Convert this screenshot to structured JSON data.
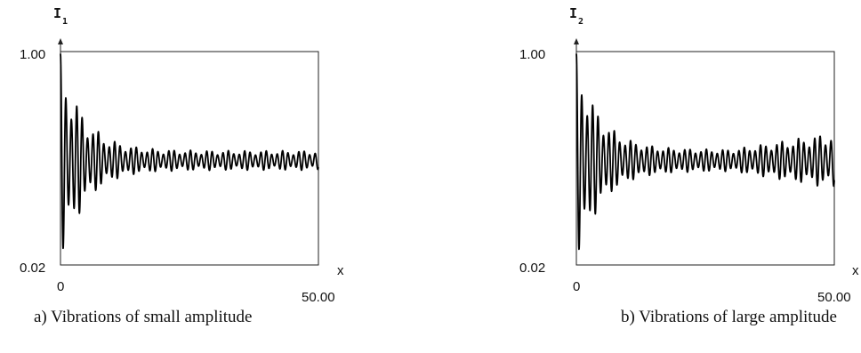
{
  "chart_data": [
    {
      "type": "line",
      "id": "a",
      "caption": "a) Vibrations of small amplitude",
      "ylabel": {
        "var": "I",
        "sub": "1"
      },
      "xlabel": "x",
      "xlim": [
        0,
        50.0
      ],
      "ylim": [
        0.02,
        1.0
      ],
      "ytick_labels": [
        "1.00",
        "0.02"
      ],
      "xtick_labels": [
        "0",
        "50.00"
      ],
      "signal": {
        "center": 0.5,
        "period": 1.05,
        "amp_start": 0.49,
        "amp_floor": 0.045,
        "decay": 0.22,
        "growth_amp": 0.0,
        "growth_start": 30,
        "beat_depth": 0.45,
        "beat_period": 3.6
      }
    },
    {
      "type": "line",
      "id": "b",
      "caption": "b) Vibrations of large amplitude",
      "ylabel": {
        "var": "I",
        "sub": "2"
      },
      "xlabel": "x",
      "xlim": [
        0,
        50.0
      ],
      "ylim": [
        0.02,
        1.0
      ],
      "ytick_labels": [
        "1.00",
        "0.02"
      ],
      "xtick_labels": [
        "0",
        "50.00"
      ],
      "signal": {
        "center": 0.5,
        "period": 1.05,
        "amp_start": 0.49,
        "amp_floor": 0.05,
        "decay": 0.22,
        "growth_amp": 0.08,
        "growth_start": 30,
        "beat_depth": 0.4,
        "beat_period": 3.6
      }
    }
  ]
}
